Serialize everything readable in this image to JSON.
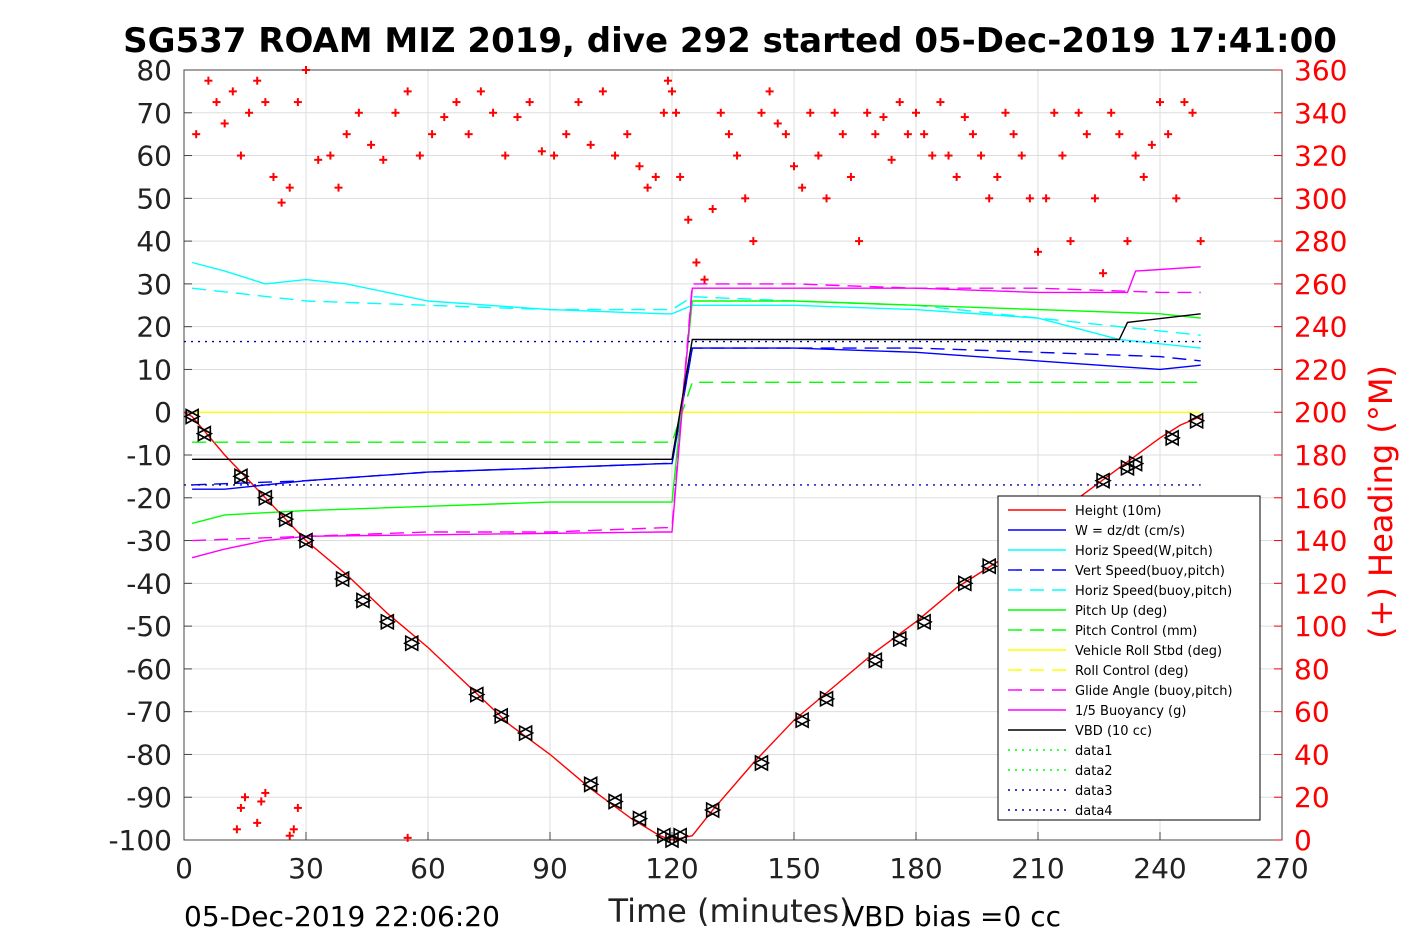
{
  "chart_data": {
    "type": "line",
    "title": "SG537 ROAM MIZ 2019, dive 292 started 05-Dec-2019 17:41:00",
    "xlabel": "Time (minutes)",
    "ylabel": "",
    "ylabel_right": "(+) Heading (°M)",
    "xlim": [
      0,
      270
    ],
    "ylim": [
      -100,
      80
    ],
    "ylim_right": [
      0,
      360
    ],
    "x_ticks": [
      "0",
      "30",
      "60",
      "90",
      "120",
      "150",
      "180",
      "210",
      "240",
      "270"
    ],
    "y_ticks": [
      "80",
      "70",
      "60",
      "50",
      "40",
      "30",
      "20",
      "10",
      "0",
      "-10",
      "-20",
      "-30",
      "-40",
      "-50",
      "-60",
      "-70",
      "-80",
      "-90",
      "-100"
    ],
    "y_ticks_right": [
      "360",
      "340",
      "320",
      "300",
      "280",
      "260",
      "240",
      "220",
      "200",
      "180",
      "160",
      "140",
      "120",
      "100",
      "80",
      "60",
      "40",
      "20",
      "0"
    ],
    "grid": true,
    "legend_placement": "bottom-right",
    "footer_left": "05-Dec-2019 22:06:20",
    "footer_right": "VBD bias =0 cc",
    "series": [
      {
        "name": "Height (10m)",
        "color": "#ff0000",
        "style": "solid",
        "x": [
          0,
          2,
          10,
          20,
          30,
          40,
          50,
          60,
          70,
          80,
          90,
          100,
          110,
          117,
          120,
          125,
          130,
          140,
          150,
          160,
          170,
          180,
          190,
          200,
          210,
          220,
          230,
          240,
          245,
          250
        ],
        "y": [
          0,
          -1,
          -10,
          -20,
          -30,
          -38,
          -47,
          -55,
          -64,
          -73,
          -80,
          -88,
          -95,
          -99,
          -100,
          -99,
          -93,
          -82,
          -72,
          -64,
          -56,
          -49,
          -41,
          -35,
          -28,
          -20,
          -13,
          -6,
          -3,
          -1
        ]
      },
      {
        "name": "W = dz/dt (cm/s)",
        "color": "#0000ff",
        "style": "solid",
        "x": [
          2,
          10,
          30,
          60,
          90,
          118,
          120,
          125,
          150,
          180,
          210,
          240,
          250
        ],
        "y": [
          -18,
          -18,
          -16,
          -14,
          -13,
          -12,
          -12,
          15,
          15,
          14,
          12,
          10,
          11
        ]
      },
      {
        "name": "Horiz Speed(W,pitch)",
        "color": "#00ffff",
        "style": "solid",
        "x": [
          2,
          10,
          20,
          30,
          40,
          50,
          60,
          90,
          118,
          120,
          125,
          150,
          180,
          210,
          230,
          240,
          250
        ],
        "y": [
          35,
          33,
          30,
          31,
          30,
          28,
          26,
          24,
          23,
          23,
          25,
          25,
          24,
          22,
          17,
          16,
          15
        ]
      },
      {
        "name": "Vert Speed(buoy,pitch)",
        "color": "#0000ff",
        "style": "dashed",
        "x": [
          2,
          30,
          60,
          90,
          118,
          120,
          125,
          150,
          180,
          210,
          240,
          250
        ],
        "y": [
          -17,
          -16,
          -14,
          -13,
          -12,
          -12,
          15,
          15,
          15,
          14,
          13,
          12
        ]
      },
      {
        "name": "Horiz Speed(buoy,pitch)",
        "color": "#00ffff",
        "style": "dashed",
        "x": [
          2,
          30,
          60,
          90,
          118,
          120,
          125,
          150,
          180,
          210,
          240,
          250
        ],
        "y": [
          29,
          26,
          25,
          24,
          24,
          24,
          27,
          26,
          25,
          22,
          19,
          18
        ]
      },
      {
        "name": "Pitch Up (deg)",
        "color": "#00ff00",
        "style": "solid",
        "x": [
          2,
          10,
          30,
          60,
          90,
          118,
          120,
          125,
          150,
          180,
          210,
          240,
          250
        ],
        "y": [
          -26,
          -24,
          -23,
          -22,
          -21,
          -21,
          -21,
          26,
          26,
          25,
          24,
          23,
          22
        ]
      },
      {
        "name": "Pitch Control (mm)",
        "color": "#00ff00",
        "style": "dashed",
        "x": [
          2,
          118,
          120,
          125,
          250
        ],
        "y": [
          -7,
          -7,
          -7,
          7,
          7
        ]
      },
      {
        "name": "Vehicle Roll Stbd (deg)",
        "color": "#ffff00",
        "style": "solid",
        "x": [
          2,
          15,
          20,
          30,
          60,
          90,
          118,
          120,
          130,
          150,
          180,
          210,
          240,
          250
        ],
        "y": [
          0,
          0,
          0,
          0,
          0,
          0,
          0,
          0,
          0,
          0,
          0,
          0,
          0,
          0
        ]
      },
      {
        "name": "Roll Control (deg)",
        "color": "#ffff00",
        "style": "dashed",
        "x": [
          2,
          250
        ],
        "y": [
          0,
          0
        ]
      },
      {
        "name": "Glide Angle (buoy,pitch)",
        "color": "#ff00ff",
        "style": "dashed",
        "x": [
          2,
          30,
          60,
          90,
          118,
          120,
          125,
          150,
          180,
          210,
          240,
          250
        ],
        "y": [
          -30,
          -29,
          -28,
          -28,
          -27,
          -27,
          30,
          30,
          29,
          29,
          28,
          28
        ]
      },
      {
        "name": "1/5 Buoyancy (g)",
        "color": "#ff00ff",
        "style": "solid",
        "x": [
          2,
          10,
          20,
          30,
          118,
          120,
          125,
          150,
          180,
          210,
          232,
          234,
          250
        ],
        "y": [
          -34,
          -32,
          -30,
          -29,
          -28,
          -28,
          29,
          29,
          29,
          28,
          28,
          33,
          34
        ]
      },
      {
        "name": "VBD (10 cc)",
        "color": "#000000",
        "style": "solid",
        "x": [
          2,
          5,
          118,
          120,
          125,
          230,
          232,
          250
        ],
        "y": [
          -11,
          -11,
          -11,
          -11,
          17,
          17,
          21,
          23
        ]
      },
      {
        "name": "data1",
        "color": "#00ff00",
        "style": "dotted",
        "x": [],
        "y": []
      },
      {
        "name": "data2",
        "color": "#00ff00",
        "style": "dotted",
        "x": [],
        "y": []
      },
      {
        "name": "data3",
        "color": "#0000aa",
        "style": "dotted",
        "x": [
          0,
          250
        ],
        "y": [
          16.5,
          16.5
        ]
      },
      {
        "name": "data4",
        "color": "#0000aa",
        "style": "dotted",
        "x": [
          0,
          250
        ],
        "y": [
          -17,
          -17
        ]
      }
    ],
    "heading": {
      "name": "(+) Heading (°M)",
      "color": "#ff0000",
      "marker": "+",
      "x": [
        3,
        6,
        8,
        10,
        12,
        14,
        16,
        18,
        20,
        22,
        24,
        26,
        28,
        30,
        33,
        36,
        38,
        40,
        43,
        46,
        49,
        52,
        55,
        58,
        61,
        64,
        67,
        70,
        73,
        76,
        79,
        82,
        85,
        88,
        91,
        94,
        97,
        100,
        103,
        106,
        109,
        112,
        114,
        116,
        118,
        119,
        120,
        121,
        122,
        124,
        126,
        128,
        130,
        132,
        134,
        136,
        138,
        140,
        142,
        144,
        146,
        148,
        150,
        152,
        154,
        156,
        158,
        160,
        162,
        164,
        166,
        168,
        170,
        172,
        174,
        176,
        178,
        180,
        182,
        184,
        186,
        188,
        190,
        192,
        194,
        196,
        198,
        200,
        202,
        204,
        206,
        208,
        210,
        212,
        214,
        216,
        218,
        220,
        222,
        224,
        226,
        228,
        230,
        232,
        234,
        236,
        238,
        240,
        242,
        244,
        246,
        248,
        250
      ],
      "y": [
        330,
        355,
        345,
        335,
        350,
        320,
        340,
        355,
        345,
        310,
        298,
        305,
        345,
        360,
        318,
        320,
        305,
        330,
        340,
        325,
        318,
        340,
        350,
        320,
        330,
        338,
        345,
        330,
        350,
        340,
        320,
        338,
        345,
        322,
        320,
        330,
        345,
        325,
        350,
        320,
        330,
        315,
        305,
        310,
        340,
        355,
        350,
        340,
        310,
        290,
        270,
        262,
        295,
        340,
        330,
        320,
        300,
        280,
        340,
        350,
        335,
        330,
        315,
        305,
        340,
        320,
        300,
        340,
        330,
        310,
        280,
        340,
        330,
        338,
        318,
        345,
        330,
        340,
        330,
        320,
        345,
        320,
        310,
        338,
        330,
        320,
        300,
        310,
        340,
        330,
        320,
        300,
        275,
        300,
        340,
        320,
        280,
        340,
        330,
        300,
        265,
        340,
        330,
        280,
        320,
        310,
        325,
        345,
        330,
        300,
        345,
        340,
        280
      ]
    },
    "heading_low_clusters": {
      "x": [
        13,
        14,
        15,
        18,
        19,
        20,
        26,
        27,
        28,
        55
      ],
      "y": [
        5,
        15,
        20,
        8,
        18,
        22,
        2,
        5,
        15,
        1
      ]
    },
    "turn_markers": {
      "marker": "triangles",
      "x": [
        2,
        5,
        14,
        20,
        25,
        30,
        39,
        44,
        50,
        56,
        72,
        78,
        84,
        100,
        106,
        112,
        118,
        120,
        122,
        130,
        142,
        152,
        158,
        170,
        176,
        182,
        192,
        198,
        226,
        232,
        234,
        243,
        249
      ],
      "y": [
        -1,
        -5,
        -15,
        -20,
        -25,
        -30,
        -39,
        -44,
        -49,
        -54,
        -66,
        -71,
        -75,
        -87,
        -91,
        -95,
        -99,
        -100,
        -99,
        -93,
        -82,
        -72,
        -67,
        -58,
        -53,
        -49,
        -40,
        -36,
        -16,
        -13,
        -12,
        -6,
        -2
      ]
    }
  }
}
